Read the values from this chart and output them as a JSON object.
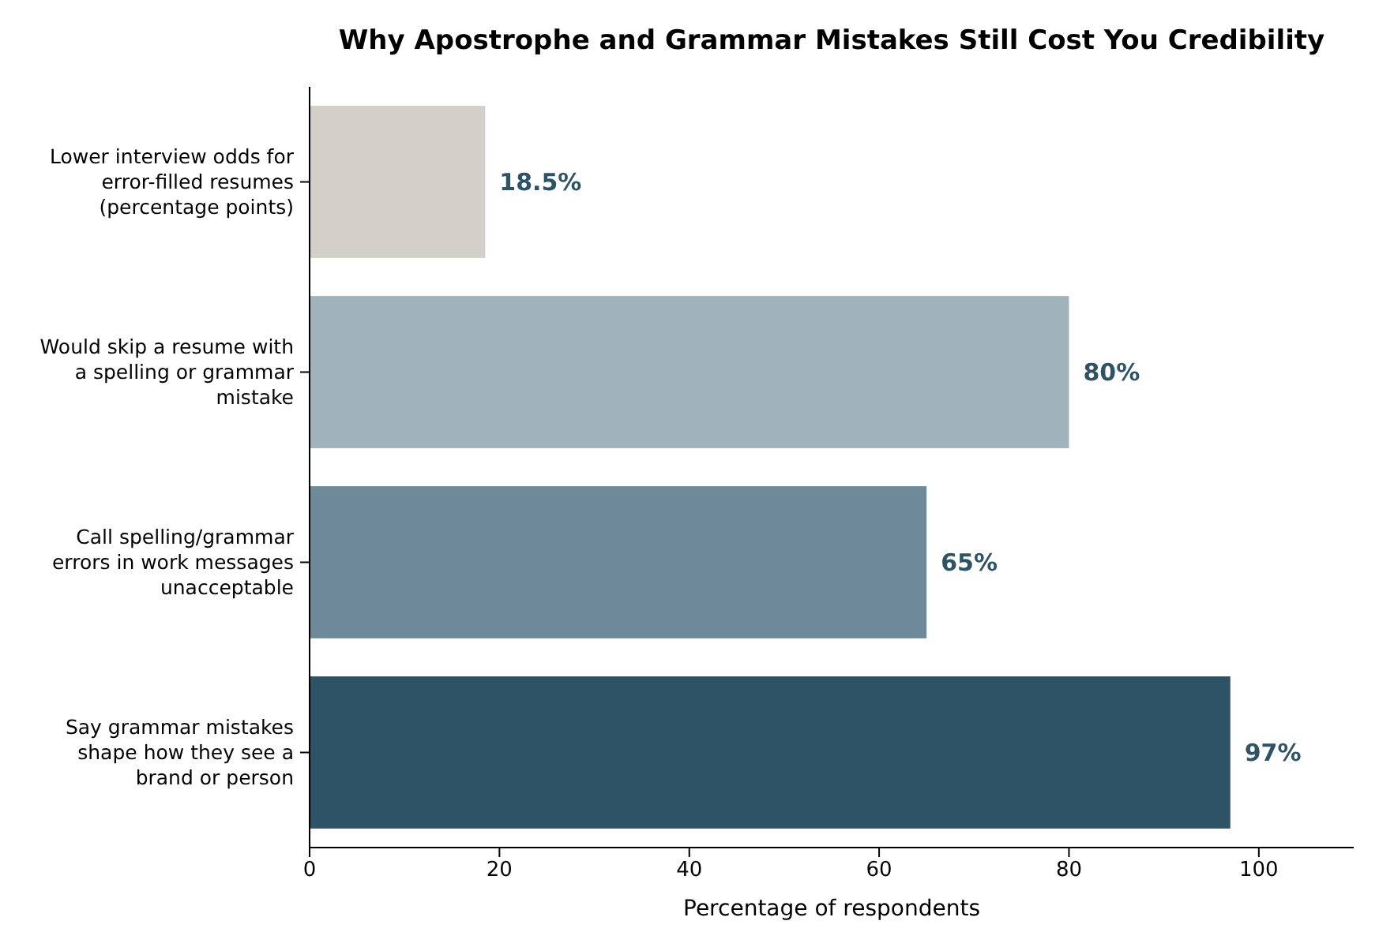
{
  "chart_data": {
    "type": "bar",
    "orientation": "horizontal",
    "title": "Why Apostrophe and Grammar Mistakes Still Cost You Credibility",
    "xlabel": "Percentage of respondents",
    "categories": [
      "Lower interview odds for error-filled resumes (percentage points)",
      "Would skip a resume with a spelling or grammar mistake",
      "Call spelling/grammar errors in work messages unacceptable",
      "Say grammar mistakes shape how they see a brand or person"
    ],
    "values": [
      18.5,
      80,
      65,
      97
    ],
    "colors": [
      "#d3d0c9",
      "#a0b2bb",
      "#6e8a99",
      "#2f5366"
    ],
    "value_labels": [
      "18.5%",
      "80%",
      "65%",
      "97%"
    ],
    "xlim": [
      0,
      110
    ],
    "xticks": [
      0,
      20,
      40,
      60,
      80,
      100
    ],
    "grid": false
  }
}
